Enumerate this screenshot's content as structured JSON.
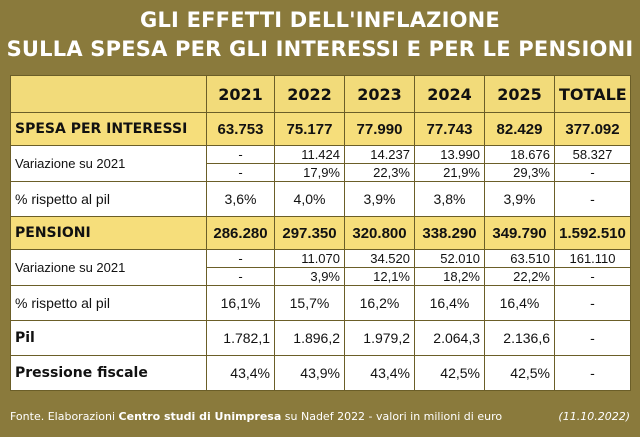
{
  "title": {
    "line1": "GLI EFFETTI DELL'INFLAZIONE",
    "line2": "SULLA SPESA PER GLI INTERESSI E PER LE PENSIONI"
  },
  "header": [
    "2021",
    "2022",
    "2023",
    "2024",
    "2025",
    "TOTALE"
  ],
  "interessi": {
    "label": "SPESA PER INTERESSI",
    "values": [
      "63.753",
      "75.177",
      "77.990",
      "77.743",
      "82.429",
      "377.092"
    ],
    "variazione_label": "Variazione su 2021",
    "variazione_abs": [
      "-",
      "11.424",
      "14.237",
      "13.990",
      "18.676",
      "58.327"
    ],
    "variazione_pct": [
      "-",
      "17,9%",
      "22,3%",
      "21,9%",
      "29,3%",
      "-"
    ],
    "pil_label": "% rispetto al pil",
    "pil_pct": [
      "3,6%",
      "4,0%",
      "3,9%",
      "3,8%",
      "3,9%",
      "-"
    ]
  },
  "pensioni": {
    "label": "PENSIONI",
    "values": [
      "286.280",
      "297.350",
      "320.800",
      "338.290",
      "349.790",
      "1.592.510"
    ],
    "variazione_label": "Variazione su 2021",
    "variazione_abs": [
      "-",
      "11.070",
      "34.520",
      "52.010",
      "63.510",
      "161.110"
    ],
    "variazione_pct": [
      "-",
      "3,9%",
      "12,1%",
      "18,2%",
      "22,2%",
      "-"
    ],
    "pil_label": "% rispetto al pil",
    "pil_pct": [
      "16,1%",
      "15,7%",
      "16,2%",
      "16,4%",
      "16,4%",
      "-"
    ]
  },
  "pil": {
    "label": "Pil",
    "values": [
      "1.782,1",
      "1.896,2",
      "1.979,2",
      "2.064,3",
      "2.136,6",
      "-"
    ]
  },
  "pressione": {
    "label": "Pressione fiscale",
    "values": [
      "43,4%",
      "43,9%",
      "43,4%",
      "42,5%",
      "42,5%",
      "-"
    ]
  },
  "footer": {
    "prefix": "Fonte. Elaborazioni ",
    "source_bold": "Centro studi di Unimpresa",
    "suffix": " su Nadef 2022 - valori in milioni di euro",
    "date": "(11.10.2022)"
  },
  "colors": {
    "frame": "#8a7a3c",
    "highlight": "#f6de7b"
  }
}
